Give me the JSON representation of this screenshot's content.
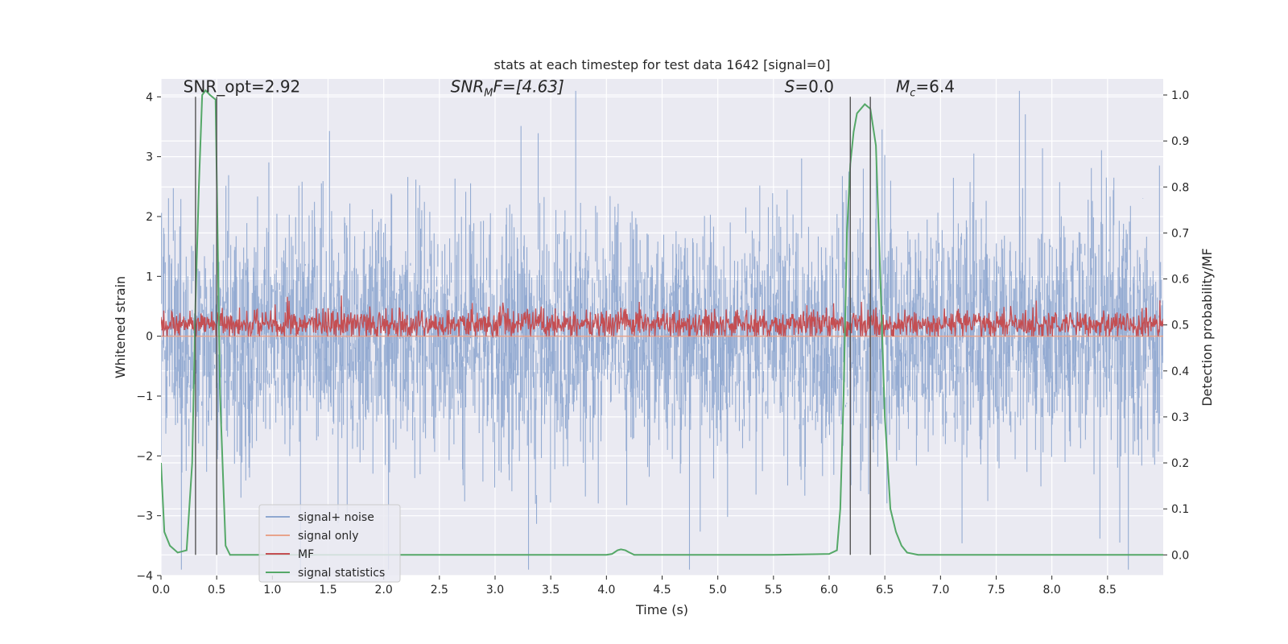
{
  "chart_data": {
    "type": "line",
    "title": "stats at each timestep for test data 1642 [signal=0]",
    "xlabel": "Time (s)",
    "ylabel": "Whitened strain",
    "y2label": "Detection probability/MF",
    "xlim": [
      0,
      9.0
    ],
    "ylim": [
      -4,
      4.3
    ],
    "y2lim": [
      -0.045,
      1.035
    ],
    "xticks": [
      0.0,
      0.5,
      1.0,
      1.5,
      2.0,
      2.5,
      3.0,
      3.5,
      4.0,
      4.5,
      5.0,
      5.5,
      6.0,
      6.5,
      7.0,
      7.5,
      8.0,
      8.5
    ],
    "xtick_labels": [
      "0.0",
      "0.5",
      "1.0",
      "1.5",
      "2.0",
      "2.5",
      "3.0",
      "3.5",
      "4.0",
      "4.5",
      "5.0",
      "5.5",
      "6.0",
      "6.5",
      "7.0",
      "7.5",
      "8.0",
      "8.5"
    ],
    "yticks": [
      -4,
      -3,
      -2,
      -1,
      0,
      1,
      2,
      3,
      4
    ],
    "ytick_labels": [
      "−4",
      "−3",
      "−2",
      "−1",
      "0",
      "1",
      "2",
      "3",
      "4"
    ],
    "y2ticks": [
      0.0,
      0.1,
      0.2,
      0.3,
      0.4,
      0.5,
      0.6,
      0.7,
      0.8,
      0.9,
      1.0
    ],
    "y2tick_labels": [
      "0.0",
      "0.1",
      "0.2",
      "0.3",
      "0.4",
      "0.5",
      "0.6",
      "0.7",
      "0.8",
      "0.9",
      "1.0"
    ],
    "grid": true,
    "legend_position": "lower-left",
    "annotations": {
      "snr_opt": "SNR_opt=2.92",
      "snr_mf_main": "SNR",
      "snr_mf_sub": "M",
      "snr_mf_rest": "F=[4.63]",
      "s_main": "S",
      "s_rest": "=0.0",
      "mc_main": "M",
      "mc_sub": "c",
      "mc_rest": "=6.4"
    },
    "vertical_lines_x": [
      0.31,
      0.5,
      6.19,
      6.37
    ],
    "series": [
      {
        "name": "signal+ noise",
        "color": "#8fa8d0",
        "axis": "left",
        "style": "noise",
        "sample_rate": 2048,
        "std": 1.0
      },
      {
        "name": "signal only",
        "color": "#e8a48c",
        "axis": "left",
        "style": "flat",
        "value": 0.0
      },
      {
        "name": "MF",
        "color": "#c44e52",
        "axis": "left",
        "style": "mf",
        "baseline": 0.2,
        "std": 0.12
      },
      {
        "name": "signal statistics",
        "color": "#55a868",
        "axis": "right",
        "x": [
          0.0,
          0.03,
          0.08,
          0.15,
          0.23,
          0.28,
          0.31,
          0.34,
          0.37,
          0.4,
          0.44,
          0.49,
          0.53,
          0.58,
          0.62,
          0.7,
          1.0,
          2.0,
          3.0,
          3.5,
          4.0,
          4.05,
          4.1,
          4.13,
          4.17,
          4.2,
          4.25,
          4.5,
          5.0,
          5.5,
          6.0,
          6.07,
          6.1,
          6.13,
          6.16,
          6.19,
          6.22,
          6.25,
          6.32,
          6.37,
          6.42,
          6.46,
          6.5,
          6.55,
          6.6,
          6.65,
          6.7,
          6.8,
          7.0,
          8.0,
          9.0
        ],
        "y": [
          0.2,
          0.05,
          0.02,
          0.005,
          0.01,
          0.2,
          0.55,
          0.8,
          1.0,
          1.01,
          1.0,
          0.99,
          0.35,
          0.02,
          0.0,
          0.0,
          0.0,
          0.0,
          0.0,
          0.0,
          0.0,
          0.002,
          0.01,
          0.012,
          0.01,
          0.006,
          0.0,
          0.0,
          0.0,
          0.0,
          0.002,
          0.01,
          0.1,
          0.35,
          0.7,
          0.85,
          0.92,
          0.96,
          0.98,
          0.97,
          0.89,
          0.6,
          0.3,
          0.1,
          0.05,
          0.02,
          0.005,
          0.0,
          0.0,
          0.0,
          0.0
        ]
      }
    ]
  }
}
